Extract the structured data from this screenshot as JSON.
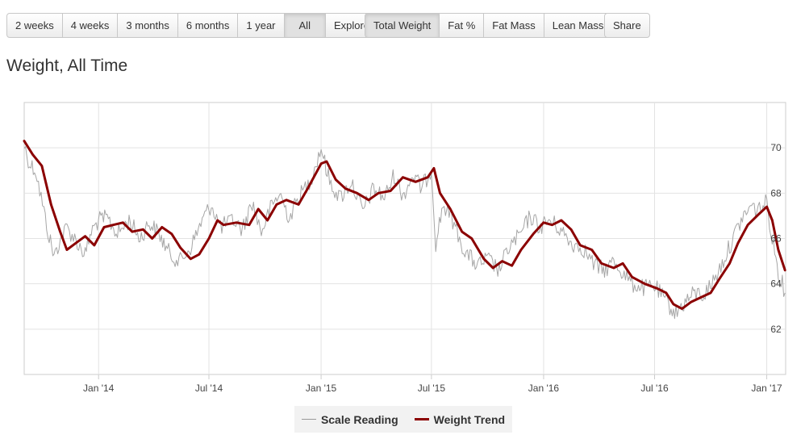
{
  "toolbar": {
    "range_buttons": [
      {
        "label": "2 weeks",
        "active": false
      },
      {
        "label": "4 weeks",
        "active": false
      },
      {
        "label": "3 months",
        "active": false
      },
      {
        "label": "6 months",
        "active": false
      },
      {
        "label": "1 year",
        "active": false
      },
      {
        "label": "All",
        "active": true
      },
      {
        "label": "Explore",
        "active": false
      }
    ],
    "metric_buttons": [
      {
        "label": "Total Weight",
        "active": true
      },
      {
        "label": "Fat %",
        "active": false
      },
      {
        "label": "Fat Mass",
        "active": false
      },
      {
        "label": "Lean Mass",
        "active": false
      }
    ],
    "share_label": "Share"
  },
  "page_title": "Weight, All Time",
  "chart_data": {
    "type": "line",
    "title": "Weight, All Time",
    "xlabel": "",
    "ylabel": "",
    "x_ticks": [
      "Jan '14",
      "Jul '14",
      "Jan '15",
      "Jul '15",
      "Jan '16",
      "Jul '16",
      "Jan '17"
    ],
    "y_ticks": [
      62,
      64,
      66,
      68,
      70
    ],
    "xlim": [
      "2013-09-01",
      "2017-02-01"
    ],
    "ylim": [
      60,
      72
    ],
    "grid": true,
    "legend_position": "bottom",
    "colors": {
      "scale_reading": "#a6a6a6",
      "weight_trend": "#8b0000"
    },
    "series": [
      {
        "name": "Scale Reading",
        "style": "thin-noisy",
        "points": [
          [
            "2013-09-01",
            70.1
          ],
          [
            "2013-09-10",
            69.3
          ],
          [
            "2013-09-20",
            69.0
          ],
          [
            "2013-10-01",
            67.5
          ],
          [
            "2013-10-10",
            66.3
          ],
          [
            "2013-10-20",
            65.2
          ],
          [
            "2013-10-28",
            65.8
          ],
          [
            "2013-11-10",
            66.5
          ],
          [
            "2013-11-25",
            65.9
          ],
          [
            "2013-12-10",
            65.3
          ],
          [
            "2013-12-20",
            66.3
          ],
          [
            "2014-01-01",
            66.8
          ],
          [
            "2014-01-15",
            66.9
          ],
          [
            "2014-02-01",
            66.2
          ],
          [
            "2014-02-20",
            66.8
          ],
          [
            "2014-03-10",
            66.0
          ],
          [
            "2014-03-25",
            66.7
          ],
          [
            "2014-04-10",
            66.2
          ],
          [
            "2014-04-28",
            65.3
          ],
          [
            "2014-05-15",
            65.0
          ],
          [
            "2014-06-01",
            65.6
          ],
          [
            "2014-06-20",
            66.8
          ],
          [
            "2014-07-05",
            67.5
          ],
          [
            "2014-07-20",
            66.5
          ],
          [
            "2014-08-10",
            66.8
          ],
          [
            "2014-08-25",
            66.4
          ],
          [
            "2014-09-10",
            67.6
          ],
          [
            "2014-09-25",
            66.3
          ],
          [
            "2014-10-10",
            67.3
          ],
          [
            "2014-10-25",
            68.0
          ],
          [
            "2014-11-10",
            66.9
          ],
          [
            "2014-11-25",
            67.8
          ],
          [
            "2014-12-15",
            68.6
          ],
          [
            "2015-01-01",
            70.0
          ],
          [
            "2015-01-15",
            68.5
          ],
          [
            "2015-02-01",
            67.8
          ],
          [
            "2015-02-20",
            68.5
          ],
          [
            "2015-03-10",
            67.2
          ],
          [
            "2015-03-28",
            68.2
          ],
          [
            "2015-04-15",
            67.8
          ],
          [
            "2015-05-01",
            68.8
          ],
          [
            "2015-05-15",
            67.9
          ],
          [
            "2015-06-01",
            68.8
          ],
          [
            "2015-06-15",
            68.2
          ],
          [
            "2015-07-01",
            69.1
          ],
          [
            "2015-07-08",
            65.8
          ],
          [
            "2015-07-20",
            67.5
          ],
          [
            "2015-08-05",
            66.8
          ],
          [
            "2015-08-25",
            65.4
          ],
          [
            "2015-09-15",
            64.8
          ],
          [
            "2015-10-01",
            65.1
          ],
          [
            "2015-10-20",
            64.6
          ],
          [
            "2015-11-05",
            65.6
          ],
          [
            "2015-11-25",
            66.2
          ],
          [
            "2015-12-10",
            67.0
          ],
          [
            "2015-12-25",
            66.5
          ],
          [
            "2016-01-10",
            66.8
          ],
          [
            "2016-01-25",
            66.5
          ],
          [
            "2016-02-15",
            65.8
          ],
          [
            "2016-03-05",
            65.6
          ],
          [
            "2016-03-25",
            64.8
          ],
          [
            "2016-04-10",
            64.6
          ],
          [
            "2016-04-25",
            65.0
          ],
          [
            "2016-05-10",
            64.5
          ],
          [
            "2016-05-25",
            64.0
          ],
          [
            "2016-06-15",
            63.8
          ],
          [
            "2016-07-01",
            63.9
          ],
          [
            "2016-07-20",
            63.2
          ],
          [
            "2016-08-05",
            62.7
          ],
          [
            "2016-08-20",
            63.2
          ],
          [
            "2016-09-05",
            63.6
          ],
          [
            "2016-09-20",
            63.5
          ],
          [
            "2016-10-05",
            64.1
          ],
          [
            "2016-10-20",
            64.9
          ],
          [
            "2016-11-05",
            65.9
          ],
          [
            "2016-11-20",
            66.8
          ],
          [
            "2016-12-05",
            67.4
          ],
          [
            "2016-12-20",
            67.3
          ],
          [
            "2017-01-01",
            67.6
          ],
          [
            "2017-01-10",
            66.0
          ],
          [
            "2017-01-20",
            64.6
          ],
          [
            "2017-01-31",
            63.6
          ]
        ]
      },
      {
        "name": "Weight Trend",
        "style": "thick-smooth",
        "points": [
          [
            "2013-09-01",
            70.3
          ],
          [
            "2013-09-15",
            69.7
          ],
          [
            "2013-09-30",
            69.2
          ],
          [
            "2013-10-15",
            67.5
          ],
          [
            "2013-10-30",
            66.3
          ],
          [
            "2013-11-10",
            65.5
          ],
          [
            "2013-11-25",
            65.8
          ],
          [
            "2013-12-10",
            66.1
          ],
          [
            "2013-12-25",
            65.7
          ],
          [
            "2014-01-10",
            66.5
          ],
          [
            "2014-01-25",
            66.6
          ],
          [
            "2014-02-10",
            66.7
          ],
          [
            "2014-02-25",
            66.3
          ],
          [
            "2014-03-15",
            66.4
          ],
          [
            "2014-03-30",
            66.0
          ],
          [
            "2014-04-15",
            66.5
          ],
          [
            "2014-05-01",
            66.2
          ],
          [
            "2014-05-15",
            65.6
          ],
          [
            "2014-06-01",
            65.1
          ],
          [
            "2014-06-15",
            65.3
          ],
          [
            "2014-07-01",
            66.0
          ],
          [
            "2014-07-15",
            66.8
          ],
          [
            "2014-07-25",
            66.6
          ],
          [
            "2014-08-15",
            66.7
          ],
          [
            "2014-09-05",
            66.6
          ],
          [
            "2014-09-20",
            67.3
          ],
          [
            "2014-10-05",
            66.8
          ],
          [
            "2014-10-20",
            67.5
          ],
          [
            "2014-11-05",
            67.7
          ],
          [
            "2014-11-25",
            67.5
          ],
          [
            "2014-12-10",
            68.2
          ],
          [
            "2015-01-01",
            69.3
          ],
          [
            "2015-01-10",
            69.4
          ],
          [
            "2015-01-25",
            68.6
          ],
          [
            "2015-02-10",
            68.2
          ],
          [
            "2015-03-01",
            68.0
          ],
          [
            "2015-03-20",
            67.7
          ],
          [
            "2015-04-05",
            68.0
          ],
          [
            "2015-04-25",
            68.1
          ],
          [
            "2015-05-15",
            68.7
          ],
          [
            "2015-06-05",
            68.5
          ],
          [
            "2015-06-25",
            68.7
          ],
          [
            "2015-07-05",
            69.1
          ],
          [
            "2015-07-15",
            68.0
          ],
          [
            "2015-08-01",
            67.3
          ],
          [
            "2015-08-20",
            66.3
          ],
          [
            "2015-09-05",
            66.0
          ],
          [
            "2015-09-25",
            65.1
          ],
          [
            "2015-10-10",
            64.7
          ],
          [
            "2015-10-25",
            65.0
          ],
          [
            "2015-11-10",
            64.8
          ],
          [
            "2015-11-25",
            65.5
          ],
          [
            "2015-12-15",
            66.2
          ],
          [
            "2016-01-01",
            66.7
          ],
          [
            "2016-01-15",
            66.6
          ],
          [
            "2016-01-30",
            66.8
          ],
          [
            "2016-02-15",
            66.4
          ],
          [
            "2016-03-01",
            65.7
          ],
          [
            "2016-03-20",
            65.5
          ],
          [
            "2016-04-05",
            64.9
          ],
          [
            "2016-04-25",
            64.7
          ],
          [
            "2016-05-10",
            64.9
          ],
          [
            "2016-05-25",
            64.3
          ],
          [
            "2016-06-15",
            64.0
          ],
          [
            "2016-07-05",
            63.8
          ],
          [
            "2016-07-20",
            63.6
          ],
          [
            "2016-08-01",
            63.1
          ],
          [
            "2016-08-15",
            62.9
          ],
          [
            "2016-08-30",
            63.2
          ],
          [
            "2016-09-15",
            63.4
          ],
          [
            "2016-10-01",
            63.6
          ],
          [
            "2016-10-15",
            64.2
          ],
          [
            "2016-11-01",
            64.9
          ],
          [
            "2016-11-15",
            65.8
          ],
          [
            "2016-12-01",
            66.6
          ],
          [
            "2016-12-20",
            67.1
          ],
          [
            "2017-01-01",
            67.4
          ],
          [
            "2017-01-10",
            66.8
          ],
          [
            "2017-01-20",
            65.5
          ],
          [
            "2017-01-31",
            64.6
          ]
        ]
      }
    ]
  }
}
